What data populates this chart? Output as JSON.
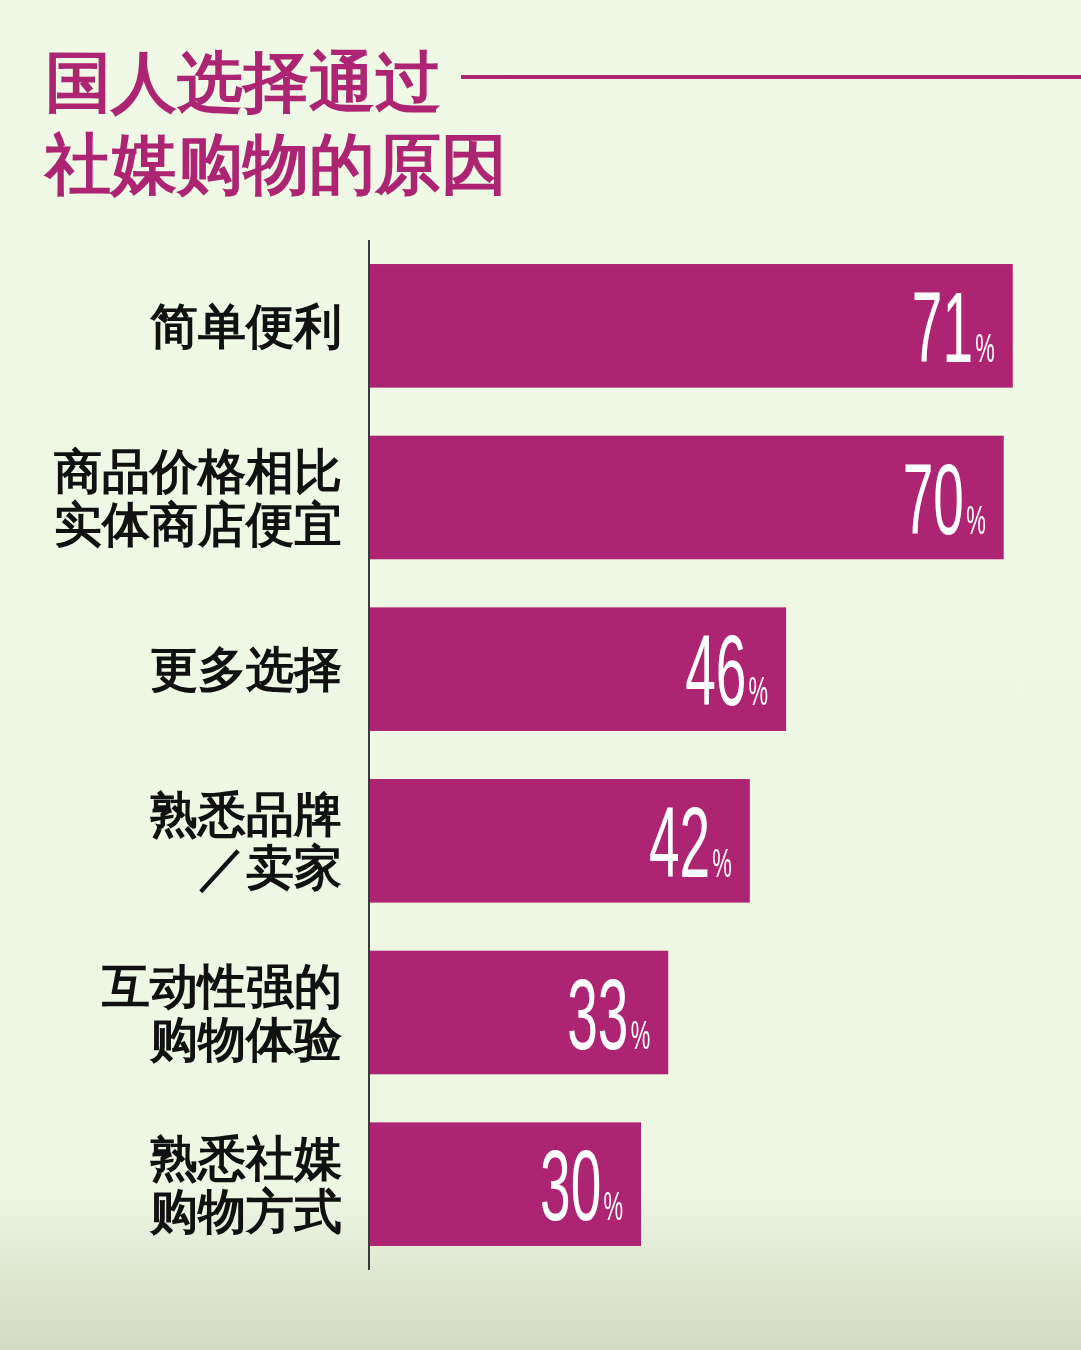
{
  "chart_data": {
    "type": "bar",
    "orientation": "horizontal",
    "title": "国人选择通过社媒购物的原因",
    "categories": [
      "简单便利",
      "商品价格相比实体商店便宜",
      "更多选择",
      "熟悉品牌／卖家",
      "互动性强的购物体验",
      "熟悉社媒购物方式"
    ],
    "values": [
      71,
      70,
      46,
      42,
      33,
      30
    ],
    "color": "#ac2472",
    "value_labels": [
      "71%",
      "70%",
      "46%",
      "42%",
      "33%",
      "30%"
    ]
  }
}
